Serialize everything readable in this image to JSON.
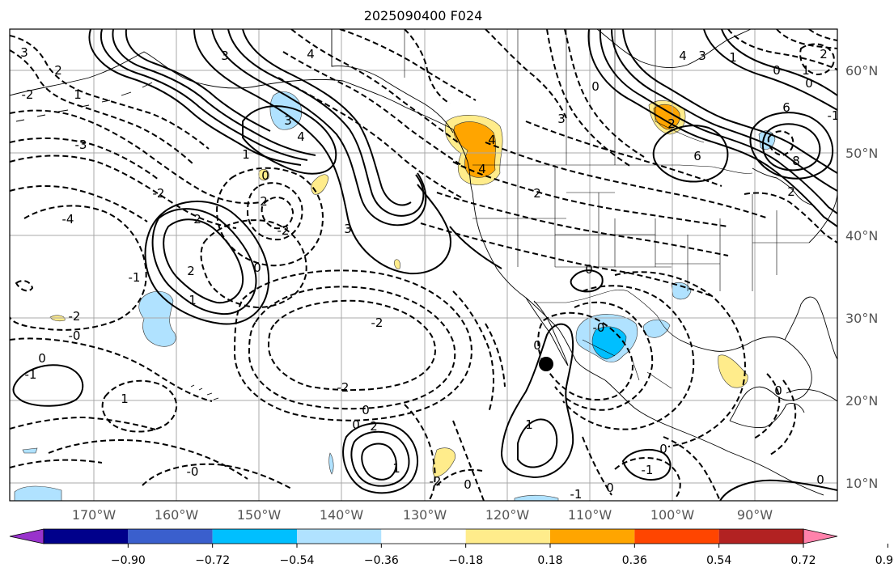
{
  "title": "2025090400 F024",
  "map": {
    "lon_labels": [
      "170°W",
      "160°W",
      "150°W",
      "140°W",
      "130°W",
      "120°W",
      "110°W",
      "100°W",
      "90°W"
    ],
    "lat_labels": [
      "60°N",
      "50°N",
      "40°N",
      "30°N",
      "20°N",
      "10°N"
    ],
    "marker": "storm-center-dot"
  },
  "colorbar": {
    "ticks": [
      "−0.90",
      "−0.72",
      "−0.54",
      "−0.36",
      "−0.18",
      "0.18",
      "0.36",
      "0.54",
      "0.72",
      "0.90"
    ],
    "colors": [
      "#9933cc",
      "#00008b",
      "#3a5fcd",
      "#00bfff",
      "#b0e2ff",
      "#ffffff",
      "#ffec8b",
      "#ffa500",
      "#ff4500",
      "#b22222",
      "#ff82ab"
    ]
  },
  "contour_labels": [
    {
      "id": "l1",
      "text": "3"
    },
    {
      "id": "l2",
      "text": "2"
    },
    {
      "id": "l3",
      "text": "1"
    },
    {
      "id": "l4",
      "text": "3"
    },
    {
      "id": "l5",
      "text": "4"
    },
    {
      "id": "l6",
      "text": "3"
    },
    {
      "id": "l7",
      "text": "4"
    },
    {
      "id": "l8",
      "text": "4"
    },
    {
      "id": "l9",
      "text": "3"
    },
    {
      "id": "l10",
      "text": "4"
    },
    {
      "id": "l11",
      "text": "2"
    },
    {
      "id": "l12",
      "text": "0"
    },
    {
      "id": "l13",
      "text": "1"
    },
    {
      "id": "l14",
      "text": "3"
    },
    {
      "id": "l15",
      "text": "2"
    },
    {
      "id": "l16",
      "text": "-2"
    },
    {
      "id": "l17",
      "text": "3"
    },
    {
      "id": "l18",
      "text": "2"
    },
    {
      "id": "l19",
      "text": "-2"
    },
    {
      "id": "l20",
      "text": "-2"
    },
    {
      "id": "l21",
      "text": "-0"
    },
    {
      "id": "l22",
      "text": "0"
    },
    {
      "id": "l23",
      "text": "-2"
    },
    {
      "id": "l24",
      "text": "0"
    },
    {
      "id": "l25",
      "text": "2"
    },
    {
      "id": "l26",
      "text": "1"
    },
    {
      "id": "l27",
      "text": "0"
    },
    {
      "id": "l28",
      "text": "-0"
    },
    {
      "id": "l29",
      "text": "1"
    },
    {
      "id": "l30",
      "text": "0"
    },
    {
      "id": "l31",
      "text": "-0"
    },
    {
      "id": "l32",
      "text": "-1"
    },
    {
      "id": "l33",
      "text": "0"
    },
    {
      "id": "l34",
      "text": "0"
    },
    {
      "id": "l35",
      "text": "0"
    },
    {
      "id": "l36",
      "text": "0"
    },
    {
      "id": "l37",
      "text": "2"
    },
    {
      "id": "l38",
      "text": "6"
    },
    {
      "id": "l39",
      "text": "6"
    },
    {
      "id": "l40",
      "text": "8"
    },
    {
      "id": "l41",
      "text": "4"
    },
    {
      "id": "l42",
      "text": "3"
    },
    {
      "id": "l43",
      "text": "0"
    },
    {
      "id": "l44",
      "text": "1"
    },
    {
      "id": "l45",
      "text": "0"
    },
    {
      "id": "l46",
      "text": "1"
    },
    {
      "id": "l47",
      "text": "2"
    },
    {
      "id": "l48",
      "text": "0"
    },
    {
      "id": "l49",
      "text": "0"
    },
    {
      "id": "l50",
      "text": "1"
    },
    {
      "id": "l51",
      "text": "-1"
    },
    {
      "id": "l52",
      "text": "1"
    },
    {
      "id": "l53",
      "text": "0"
    },
    {
      "id": "l54",
      "text": "-1"
    },
    {
      "id": "l55",
      "text": "-1"
    },
    {
      "id": "l56",
      "text": "-4"
    },
    {
      "id": "l57",
      "text": "-2"
    },
    {
      "id": "l58",
      "text": "-3"
    },
    {
      "id": "l59",
      "text": "-2"
    },
    {
      "id": "l60",
      "text": "2"
    },
    {
      "id": "l61",
      "text": "3"
    },
    {
      "id": "l62",
      "text": "2"
    },
    {
      "id": "l63",
      "text": "0"
    },
    {
      "id": "l64",
      "text": "-2"
    },
    {
      "id": "l65",
      "text": "-1"
    }
  ]
}
